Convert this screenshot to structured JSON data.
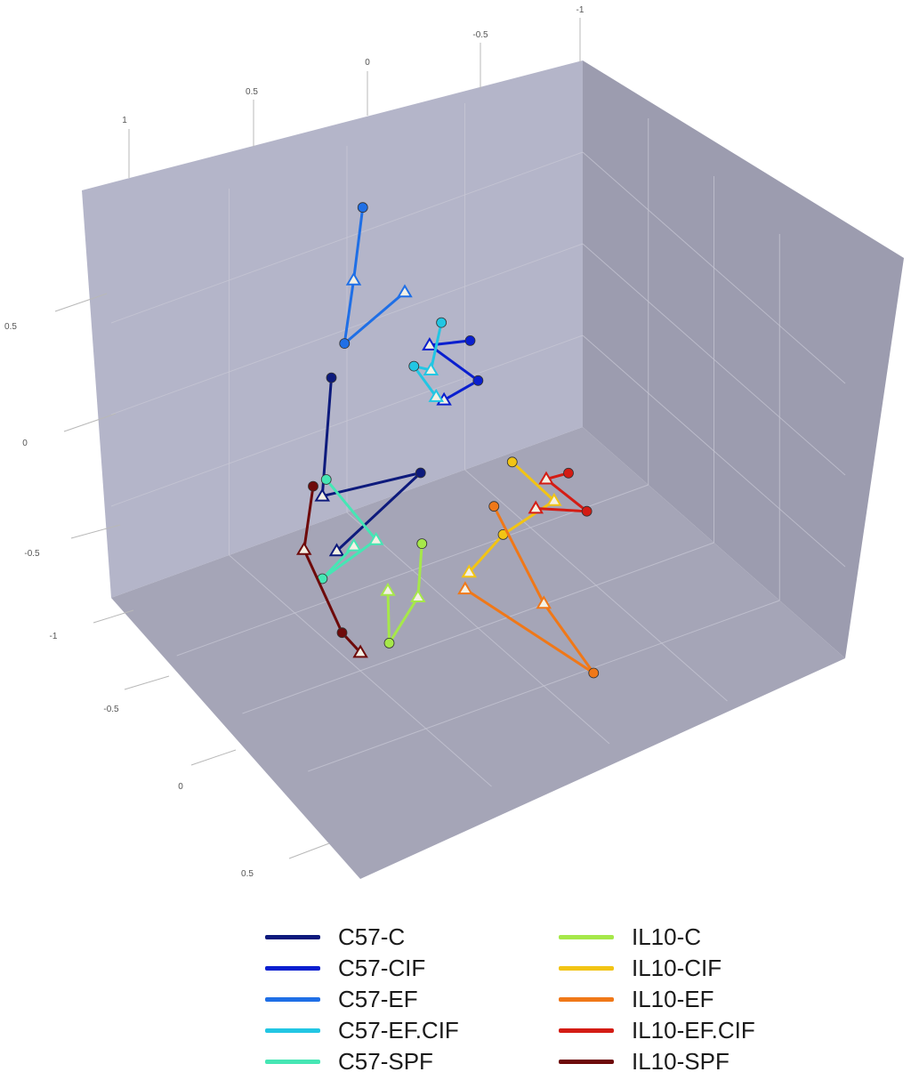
{
  "chart_data": {
    "type": "scatter",
    "title": "",
    "subtitle": "",
    "axes": {
      "x": {
        "label": "",
        "ticks": [
          "-1",
          "-0.5",
          "0",
          "0.5",
          "1"
        ]
      },
      "y": {
        "label": "",
        "ticks": [
          "0.5",
          "0",
          "-0.5",
          "-1"
        ]
      },
      "z": {
        "label": "",
        "ticks": [
          "-0.5",
          "0",
          "0.5"
        ]
      }
    },
    "grid": true,
    "legend_position": "bottom",
    "series": [
      {
        "name": "C57-C",
        "color": "#0d1a7c",
        "points": [
          [
            0.4,
            0.3,
            -0.4
          ],
          [
            0.55,
            -0.15,
            -0.2
          ],
          [
            0.3,
            0.05,
            0.1
          ],
          [
            0.6,
            -0.3,
            0.0
          ]
        ]
      },
      {
        "name": "C57-CIF",
        "color": "#0a1fcf",
        "points": [
          [
            -0.3,
            0.05,
            -0.6
          ],
          [
            -0.1,
            0.15,
            -0.55
          ],
          [
            -0.25,
            -0.05,
            -0.45
          ],
          [
            -0.05,
            0.0,
            -0.35
          ]
        ]
      },
      {
        "name": "C57-EF",
        "color": "#1f6fe6",
        "points": [
          [
            0.1,
            0.9,
            -0.7
          ],
          [
            0.25,
            0.7,
            -0.5
          ],
          [
            0.4,
            0.55,
            -0.3
          ],
          [
            0.2,
            0.8,
            -0.2
          ]
        ]
      },
      {
        "name": "C57-EF.CIF",
        "color": "#22c6e3",
        "points": [
          [
            -0.15,
            0.25,
            -0.55
          ],
          [
            -0.05,
            0.1,
            -0.45
          ],
          [
            0.05,
            0.2,
            -0.4
          ],
          [
            -0.1,
            -0.1,
            -0.5
          ]
        ]
      },
      {
        "name": "C57-SPF",
        "color": "#46e6b4",
        "points": [
          [
            0.7,
            0.2,
            0.1
          ],
          [
            0.6,
            -0.05,
            0.3
          ],
          [
            0.8,
            -0.2,
            0.25
          ],
          [
            0.75,
            0.05,
            0.4
          ]
        ]
      },
      {
        "name": "IL10-C",
        "color": "#a6e84a",
        "points": [
          [
            0.35,
            -0.25,
            0.2
          ],
          [
            0.45,
            -0.4,
            0.35
          ],
          [
            0.6,
            -0.55,
            0.4
          ],
          [
            0.55,
            -0.35,
            0.3
          ]
        ]
      },
      {
        "name": "IL10-CIF",
        "color": "#f2c414",
        "points": [
          [
            -0.2,
            -0.25,
            -0.1
          ],
          [
            -0.35,
            -0.5,
            -0.05
          ],
          [
            -0.05,
            -0.45,
            0.1
          ],
          [
            0.15,
            -0.5,
            0.2
          ]
        ]
      },
      {
        "name": "IL10-EF",
        "color": "#f07818",
        "points": [
          [
            0.1,
            -0.1,
            0.3
          ],
          [
            0.0,
            -0.55,
            0.5
          ],
          [
            -0.1,
            -0.85,
            0.7
          ],
          [
            0.25,
            -0.45,
            0.35
          ]
        ]
      },
      {
        "name": "IL10-EF.CIF",
        "color": "#d41c14",
        "points": [
          [
            -0.55,
            -0.6,
            -0.3
          ],
          [
            -0.4,
            -0.5,
            -0.2
          ],
          [
            -0.6,
            -0.8,
            -0.25
          ],
          [
            -0.3,
            -0.55,
            -0.1
          ]
        ]
      },
      {
        "name": "IL10-SPF",
        "color": "#6e0a0a",
        "points": [
          [
            0.7,
            0.1,
            0.0
          ],
          [
            0.85,
            -0.05,
            0.2
          ],
          [
            0.8,
            -0.4,
            0.4
          ],
          [
            0.75,
            -0.5,
            0.45
          ]
        ]
      }
    ]
  }
}
